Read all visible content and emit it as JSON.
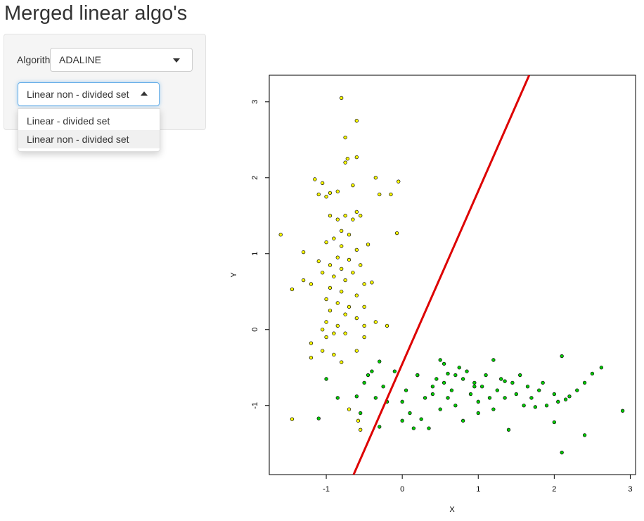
{
  "header": {
    "title": "Merged linear algo's"
  },
  "sidebar": {
    "algorithm_label": "Algorith",
    "algorithm_value": "ADALINE",
    "dataset_value": "Linear non - divided set",
    "dataset_options": [
      "Linear - divided set",
      "Linear non - divided set"
    ]
  },
  "chart_data": {
    "type": "scatter",
    "xlabel": "X",
    "ylabel": "Y",
    "xlim": [
      -1.75,
      3.07
    ],
    "ylim": [
      -1.91,
      3.35
    ],
    "xticks": [
      -1,
      0,
      1,
      2,
      3
    ],
    "yticks": [
      -1,
      0,
      1,
      2,
      3
    ],
    "series": [
      {
        "color": "#ffff00",
        "x": [
          -0.8,
          -0.6,
          -0.75,
          -0.6,
          -0.72,
          -0.75,
          -0.35,
          -0.05,
          -1.15,
          -1.05,
          -0.95,
          -0.85,
          -0.65,
          -0.3,
          -0.15,
          -1.1,
          -1.0,
          -0.6,
          -0.75,
          -0.95,
          -0.85,
          -0.65,
          -0.55,
          -1.6,
          -0.07,
          -0.8,
          -0.9,
          -0.7,
          -1.0,
          -0.8,
          -0.45,
          -0.6,
          -1.3,
          -0.85,
          -0.7,
          -1.1,
          -0.55,
          -0.95,
          -0.8,
          -0.65,
          -1.05,
          -0.9,
          -1.3,
          -1.2,
          -0.75,
          -0.5,
          -0.4,
          -1.45,
          -0.95,
          -0.8,
          -0.6,
          -1.0,
          -0.85,
          -0.7,
          -0.5,
          -0.95,
          -0.75,
          -0.6,
          -0.35,
          -1.0,
          -0.85,
          -0.5,
          -1.05,
          -0.9,
          -0.75,
          -0.2,
          -1.0,
          -0.5,
          -1.2,
          -1.05,
          -0.9,
          -0.6,
          -1.2,
          -0.8,
          -1.45,
          -0.55,
          -0.7,
          -0.58
        ],
        "y": [
          3.05,
          2.75,
          2.53,
          2.27,
          2.25,
          2.2,
          2.0,
          1.95,
          1.98,
          1.93,
          1.8,
          1.82,
          1.9,
          1.78,
          1.78,
          1.78,
          1.75,
          1.55,
          1.5,
          1.5,
          1.45,
          1.45,
          1.5,
          1.25,
          1.27,
          1.3,
          1.2,
          1.25,
          1.15,
          1.1,
          1.12,
          1.05,
          1.02,
          0.95,
          0.92,
          0.9,
          0.85,
          0.85,
          0.8,
          0.75,
          0.75,
          0.7,
          0.65,
          0.6,
          0.65,
          0.6,
          0.62,
          0.53,
          0.55,
          0.5,
          0.45,
          0.4,
          0.35,
          0.3,
          0.3,
          0.25,
          0.2,
          0.15,
          0.1,
          0.1,
          0.05,
          0.05,
          0.0,
          -0.05,
          -0.05,
          0.05,
          -0.1,
          -0.1,
          -0.18,
          -0.28,
          -0.33,
          -0.28,
          -0.37,
          -0.43,
          -1.18,
          -1.32,
          -1.05,
          -1.2
        ]
      },
      {
        "color": "#00cc00",
        "x": [
          -1.1,
          -1.0,
          -0.85,
          -0.6,
          -0.5,
          -0.45,
          -0.4,
          -0.35,
          -0.3,
          -0.2,
          -0.1,
          0.05,
          0.1,
          0.15,
          0.2,
          0.3,
          0.35,
          0.4,
          0.45,
          0.5,
          0.5,
          0.55,
          0.6,
          0.6,
          0.65,
          0.7,
          0.75,
          0.8,
          0.8,
          0.85,
          0.9,
          0.95,
          1.0,
          1.0,
          1.05,
          1.1,
          1.15,
          1.2,
          1.2,
          1.25,
          1.3,
          1.35,
          1.4,
          1.45,
          1.5,
          1.55,
          1.6,
          1.65,
          1.7,
          1.8,
          1.85,
          1.9,
          2.0,
          2.05,
          2.1,
          2.15,
          2.2,
          2.3,
          2.4,
          2.5,
          2.62,
          2.9,
          2.1,
          2.4,
          -0.55,
          -0.3,
          0.0,
          0.25,
          0.4,
          0.7,
          0.95,
          1.35,
          1.75,
          2.0,
          0.0,
          0.2,
          -0.25,
          0.55
        ],
        "y": [
          -1.17,
          -0.65,
          -0.9,
          -0.88,
          -0.7,
          -0.6,
          -0.55,
          -0.9,
          -1.28,
          -0.95,
          -0.55,
          -0.8,
          -1.1,
          -1.3,
          -0.6,
          -0.9,
          -1.3,
          -0.75,
          -0.65,
          -0.4,
          -1.05,
          -0.7,
          -0.58,
          -0.9,
          -0.8,
          -1.0,
          -0.5,
          -0.65,
          -1.2,
          -0.55,
          -0.85,
          -0.7,
          -0.95,
          -1.1,
          -0.75,
          -0.6,
          -0.9,
          -0.4,
          -1.05,
          -0.8,
          -0.65,
          -0.9,
          -1.32,
          -0.7,
          -0.85,
          -0.6,
          -1.0,
          -0.75,
          -0.9,
          -0.8,
          -0.7,
          -1.0,
          -0.85,
          -0.95,
          -0.35,
          -0.92,
          -0.88,
          -0.8,
          -0.7,
          -0.58,
          -0.5,
          -1.07,
          -1.62,
          -1.39,
          -1.1,
          -0.42,
          -0.95,
          -1.18,
          -0.85,
          -0.6,
          -0.75,
          -0.68,
          -1.02,
          -1.22,
          -1.2,
          -0.6,
          -0.75,
          -0.45
        ]
      }
    ],
    "line": {
      "color": "#dd0000",
      "x": [
        -0.64,
        1.67
      ],
      "y": [
        -1.91,
        3.35
      ]
    }
  }
}
